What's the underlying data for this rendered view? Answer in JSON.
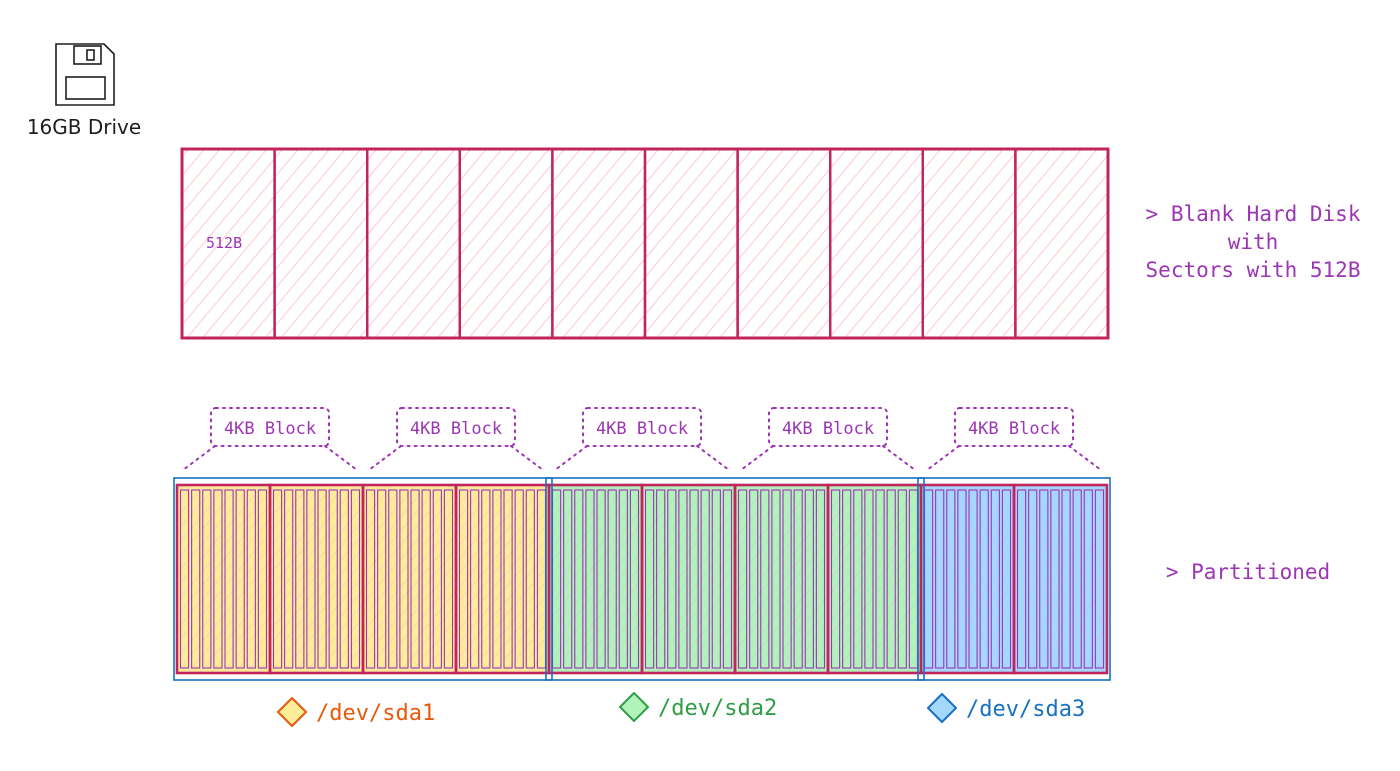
{
  "drive": {
    "icon": "floppy-disk-icon",
    "label": "16GB Drive"
  },
  "blank_disk": {
    "sector_count": 10,
    "sector_label": "512B",
    "annotation_lines": [
      "> Blank Hard Disk",
      "with",
      "Sectors with 512B"
    ],
    "colors": {
      "stroke": "#c2255c",
      "hatch": "#ffc9c9"
    }
  },
  "partitioned_disk": {
    "annotation": "> Partitioned",
    "block_count": 10,
    "block_brackets": [
      {
        "label": "4KB Block"
      },
      {
        "label": "4KB Block"
      },
      {
        "label": "4KB Block"
      },
      {
        "label": "4KB Block"
      },
      {
        "label": "4KB Block"
      }
    ],
    "partitions": [
      {
        "name": "/dev/sda1",
        "blocks": 4,
        "fill": "#ffec99",
        "text_color": "#e8590c",
        "icon": "diamond-orange-icon"
      },
      {
        "name": "/dev/sda2",
        "blocks": 4,
        "fill": "#b2f2bb",
        "text_color": "#2f9e44",
        "icon": "diamond-green-icon"
      },
      {
        "name": "/dev/sda3",
        "blocks": 2,
        "fill": "#a5d8ff",
        "text_color": "#1971c2",
        "icon": "diamond-blue-icon"
      }
    ],
    "colors": {
      "block_stroke": "#c2255c",
      "sector_stroke": "#9c36b5",
      "outline": "#1971c2",
      "bracket": "#9c36b5",
      "annotation": "#9c36b5"
    }
  }
}
